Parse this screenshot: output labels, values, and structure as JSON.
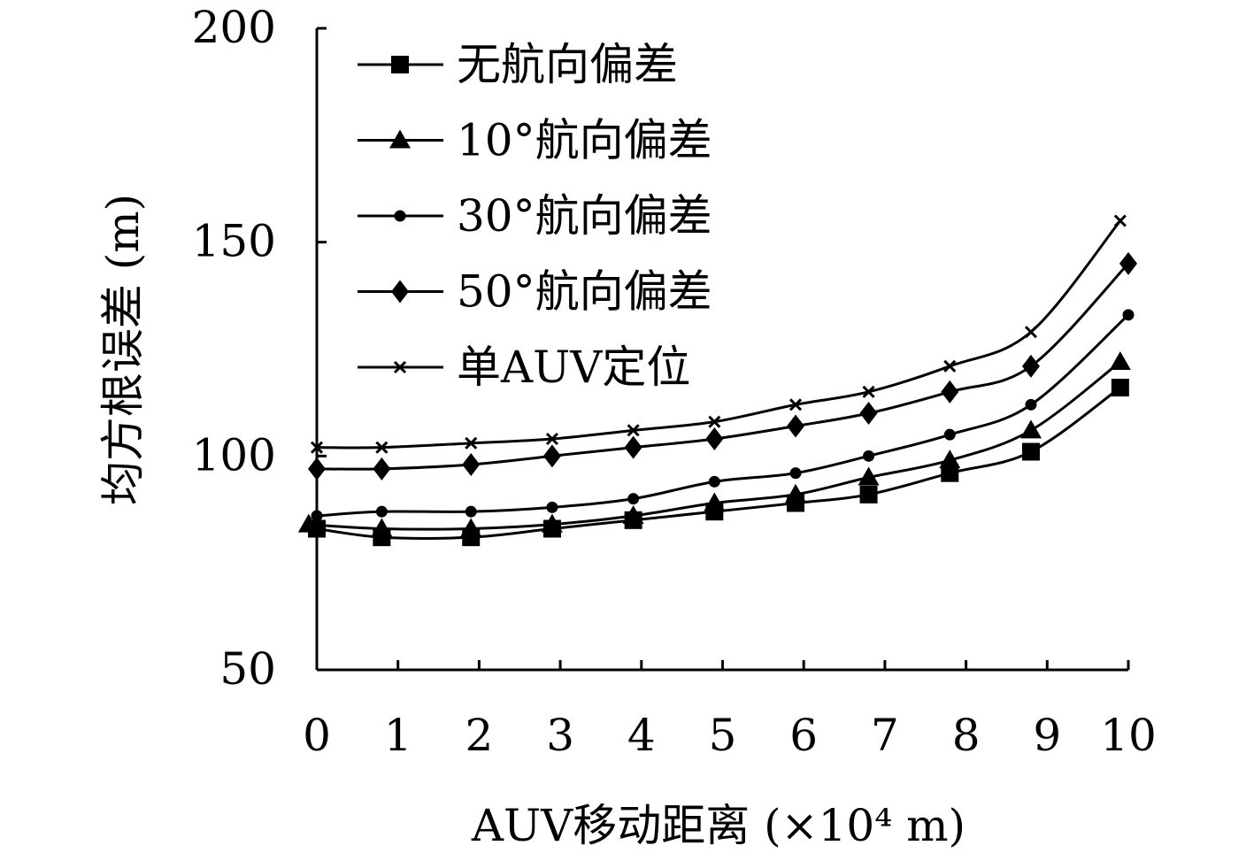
{
  "chart_data": {
    "type": "line",
    "xlabel": "AUV移动距离 (×10⁴ m)",
    "ylabel": "均方根误差 (m)",
    "xlim": [
      0,
      10
    ],
    "ylim": [
      50,
      200
    ],
    "x_ticks": [
      0,
      1,
      2,
      3,
      4,
      5,
      6,
      7,
      8,
      9,
      10
    ],
    "y_ticks": [
      50,
      100,
      150,
      200
    ],
    "x_tick_labels": [
      "0",
      "1",
      "2",
      "3",
      "4",
      "5",
      "6",
      "7",
      "8",
      "9",
      "10"
    ],
    "y_tick_labels": [
      "50",
      "100",
      "150",
      "200"
    ],
    "grid": false,
    "legend_position": "top-left",
    "series": [
      {
        "name": "无航向偏差",
        "marker": "square",
        "x": [
          0,
          0.8,
          1.9,
          2.9,
          3.9,
          4.9,
          5.9,
          6.8,
          7.8,
          8.8,
          9.9
        ],
        "values": [
          83,
          81,
          81,
          83,
          85,
          87,
          89,
          91,
          96,
          101,
          116
        ]
      },
      {
        "name": "10°航向偏差",
        "marker": "triangle",
        "x": [
          -0.1,
          0.8,
          1.9,
          2.9,
          3.9,
          4.9,
          5.9,
          6.8,
          7.8,
          8.8,
          9.9
        ],
        "values": [
          84,
          83,
          83,
          84,
          86,
          89,
          91,
          95,
          99,
          106,
          122
        ]
      },
      {
        "name": "30°航向偏差",
        "marker": "circle",
        "x": [
          0,
          0.8,
          1.9,
          2.9,
          3.9,
          4.9,
          5.9,
          6.8,
          7.8,
          8.8,
          10.0
        ],
        "values": [
          86,
          87,
          87,
          88,
          90,
          94,
          96,
          100,
          105,
          112,
          133
        ]
      },
      {
        "name": "50°航向偏差",
        "marker": "diamond",
        "x": [
          0,
          0.8,
          1.9,
          2.9,
          3.9,
          4.9,
          5.9,
          6.8,
          7.8,
          8.8,
          10.0
        ],
        "values": [
          97,
          97,
          98,
          100,
          102,
          104,
          107,
          110,
          115,
          121,
          145
        ]
      },
      {
        "name": "单AUV定位",
        "marker": "x",
        "x": [
          0,
          0.8,
          1.9,
          2.9,
          3.9,
          4.9,
          5.9,
          6.8,
          7.8,
          8.8,
          9.9
        ],
        "values": [
          102,
          102,
          103,
          104,
          106,
          108,
          112,
          115,
          121,
          129,
          155
        ]
      }
    ]
  }
}
